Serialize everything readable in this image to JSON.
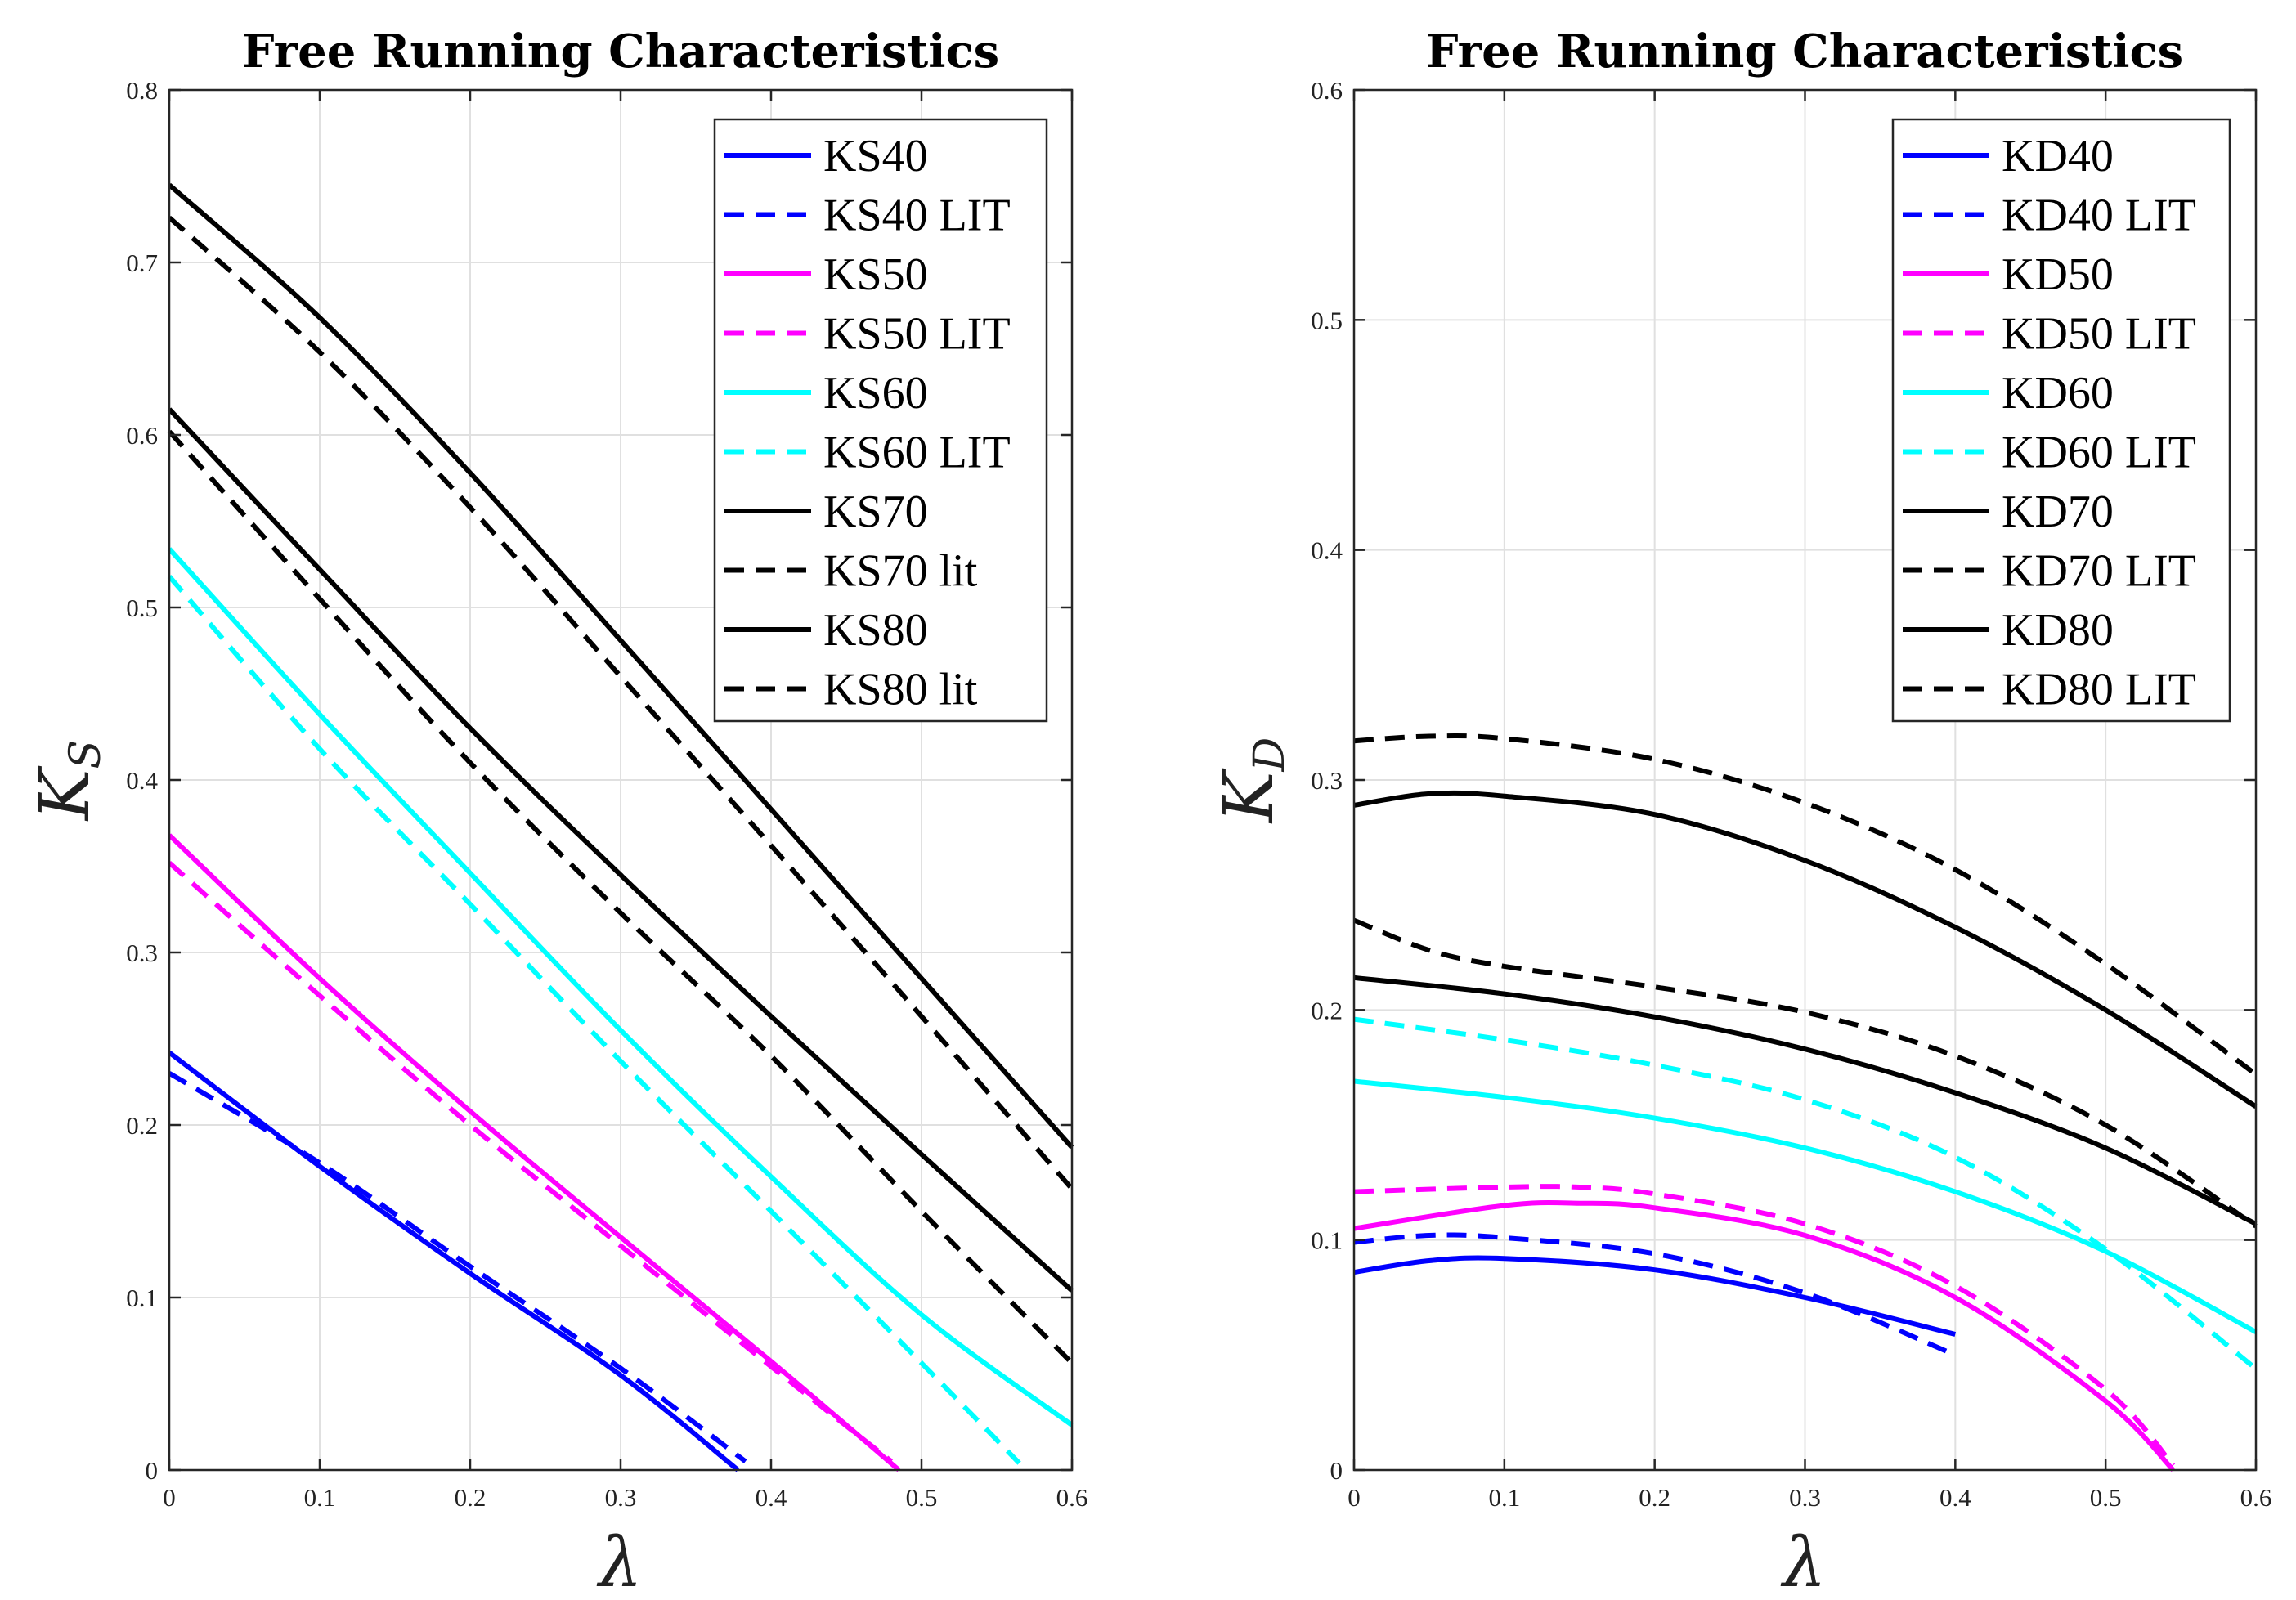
{
  "chart_data": [
    {
      "type": "line",
      "title": "Free Running Characteristics",
      "xlabel": "λ",
      "ylabel": "K",
      "ylabel_sub": "S",
      "xlim": [
        0,
        0.6
      ],
      "ylim": [
        0,
        0.8
      ],
      "xticks": [
        "0",
        "0.1",
        "0.2",
        "0.3",
        "0.4",
        "0.5",
        "0.6"
      ],
      "yticks": [
        "0",
        "0.1",
        "0.2",
        "0.3",
        "0.4",
        "0.5",
        "0.6",
        "0.7",
        "0.8"
      ],
      "grid": true,
      "legend_position": "top-right",
      "series": [
        {
          "name": "KS40",
          "color": "#0000ff",
          "dash": false,
          "x": [
            0,
            0.1,
            0.2,
            0.3,
            0.378
          ],
          "y": [
            0.242,
            0.176,
            0.114,
            0.055,
            0.0
          ]
        },
        {
          "name": "KS40 LIT",
          "color": "#0000ff",
          "dash": true,
          "x": [
            0,
            0.1,
            0.2,
            0.3,
            0.383
          ],
          "y": [
            0.23,
            0.178,
            0.118,
            0.059,
            0.005
          ]
        },
        {
          "name": "KS50",
          "color": "#ff00ff",
          "dash": false,
          "x": [
            0,
            0.1,
            0.2,
            0.3,
            0.4,
            0.485
          ],
          "y": [
            0.368,
            0.285,
            0.208,
            0.135,
            0.063,
            0.0
          ]
        },
        {
          "name": "KS50 LIT",
          "color": "#ff00ff",
          "dash": true,
          "x": [
            0,
            0.1,
            0.2,
            0.3,
            0.4,
            0.48
          ],
          "y": [
            0.352,
            0.275,
            0.2,
            0.13,
            0.06,
            0.005
          ]
        },
        {
          "name": "KS60",
          "color": "#00ffff",
          "dash": false,
          "x": [
            0,
            0.1,
            0.2,
            0.3,
            0.4,
            0.5,
            0.6
          ],
          "y": [
            0.534,
            0.438,
            0.346,
            0.255,
            0.17,
            0.09,
            0.026
          ]
        },
        {
          "name": "KS60 LIT",
          "color": "#00ffff",
          "dash": true,
          "x": [
            0,
            0.1,
            0.2,
            0.3,
            0.4,
            0.5,
            0.565
          ],
          "y": [
            0.518,
            0.418,
            0.328,
            0.237,
            0.15,
            0.062,
            0.004
          ]
        },
        {
          "name": "KS70",
          "color": "#000000",
          "dash": false,
          "x": [
            0,
            0.1,
            0.2,
            0.3,
            0.4,
            0.5,
            0.6
          ],
          "y": [
            0.615,
            0.522,
            0.43,
            0.345,
            0.263,
            0.183,
            0.104
          ]
        },
        {
          "name": "KS70 lit",
          "color": "#000000",
          "dash": true,
          "x": [
            0,
            0.1,
            0.2,
            0.3,
            0.4,
            0.5,
            0.6
          ],
          "y": [
            0.602,
            0.505,
            0.41,
            0.323,
            0.24,
            0.15,
            0.062
          ]
        },
        {
          "name": "KS80",
          "color": "#000000",
          "dash": false,
          "x": [
            0,
            0.1,
            0.2,
            0.3,
            0.4,
            0.5,
            0.6
          ],
          "y": [
            0.745,
            0.668,
            0.578,
            0.481,
            0.383,
            0.285,
            0.187
          ]
        },
        {
          "name": "KS80 lit",
          "color": "#000000",
          "dash": true,
          "x": [
            0,
            0.1,
            0.2,
            0.3,
            0.4,
            0.5,
            0.6
          ],
          "y": [
            0.726,
            0.648,
            0.558,
            0.46,
            0.362,
            0.263,
            0.163
          ]
        }
      ]
    },
    {
      "type": "line",
      "title": "Free Running Characteristics",
      "xlabel": "λ",
      "ylabel": "K",
      "ylabel_sub": "D",
      "xlim": [
        0,
        0.6
      ],
      "ylim": [
        0,
        0.6
      ],
      "xticks": [
        "0",
        "0.1",
        "0.2",
        "0.3",
        "0.4",
        "0.5",
        "0.6"
      ],
      "yticks": [
        "0",
        "0.1",
        "0.2",
        "0.3",
        "0.4",
        "0.5",
        "0.6"
      ],
      "grid": true,
      "legend_position": "top-right",
      "series": [
        {
          "name": "KD40",
          "color": "#0000ff",
          "dash": false,
          "x": [
            0,
            0.05,
            0.1,
            0.2,
            0.3,
            0.4
          ],
          "y": [
            0.086,
            0.091,
            0.092,
            0.087,
            0.075,
            0.059
          ]
        },
        {
          "name": "KD40 LIT",
          "color": "#0000ff",
          "dash": true,
          "x": [
            0,
            0.05,
            0.1,
            0.2,
            0.3,
            0.4
          ],
          "y": [
            0.099,
            0.102,
            0.101,
            0.094,
            0.077,
            0.05
          ]
        },
        {
          "name": "KD50",
          "color": "#ff00ff",
          "dash": false,
          "x": [
            0,
            0.1,
            0.15,
            0.2,
            0.3,
            0.4,
            0.5,
            0.545
          ],
          "y": [
            0.105,
            0.115,
            0.116,
            0.114,
            0.102,
            0.075,
            0.03,
            0.0
          ]
        },
        {
          "name": "KD50 LIT",
          "color": "#ff00ff",
          "dash": true,
          "x": [
            0,
            0.1,
            0.15,
            0.2,
            0.3,
            0.4,
            0.5,
            0.545
          ],
          "y": [
            0.121,
            0.123,
            0.123,
            0.12,
            0.107,
            0.08,
            0.035,
            0.002
          ]
        },
        {
          "name": "KD60",
          "color": "#00ffff",
          "dash": false,
          "x": [
            0,
            0.1,
            0.2,
            0.3,
            0.4,
            0.5,
            0.6
          ],
          "y": [
            0.169,
            0.162,
            0.153,
            0.14,
            0.121,
            0.095,
            0.06
          ]
        },
        {
          "name": "KD60 LIT",
          "color": "#00ffff",
          "dash": true,
          "x": [
            0,
            0.1,
            0.2,
            0.3,
            0.4,
            0.5,
            0.6
          ],
          "y": [
            0.196,
            0.187,
            0.176,
            0.161,
            0.136,
            0.096,
            0.044
          ]
        },
        {
          "name": "KD70",
          "color": "#000000",
          "dash": false,
          "x": [
            0,
            0.1,
            0.2,
            0.3,
            0.4,
            0.5,
            0.6
          ],
          "y": [
            0.214,
            0.207,
            0.197,
            0.183,
            0.164,
            0.14,
            0.107
          ]
        },
        {
          "name": "KD70 LIT",
          "color": "#000000",
          "dash": true,
          "x": [
            0,
            0.05,
            0.1,
            0.2,
            0.3,
            0.4,
            0.5,
            0.6
          ],
          "y": [
            0.239,
            0.226,
            0.219,
            0.21,
            0.199,
            0.18,
            0.15,
            0.106
          ]
        },
        {
          "name": "KD80",
          "color": "#000000",
          "dash": false,
          "x": [
            0,
            0.05,
            0.1,
            0.2,
            0.3,
            0.4,
            0.5,
            0.6
          ],
          "y": [
            0.289,
            0.294,
            0.293,
            0.285,
            0.265,
            0.236,
            0.2,
            0.158
          ]
        },
        {
          "name": "KD80 LIT",
          "color": "#000000",
          "dash": true,
          "x": [
            0,
            0.05,
            0.1,
            0.2,
            0.3,
            0.4,
            0.5,
            0.6
          ],
          "y": [
            0.317,
            0.319,
            0.318,
            0.309,
            0.29,
            0.261,
            0.22,
            0.172
          ]
        }
      ]
    }
  ]
}
